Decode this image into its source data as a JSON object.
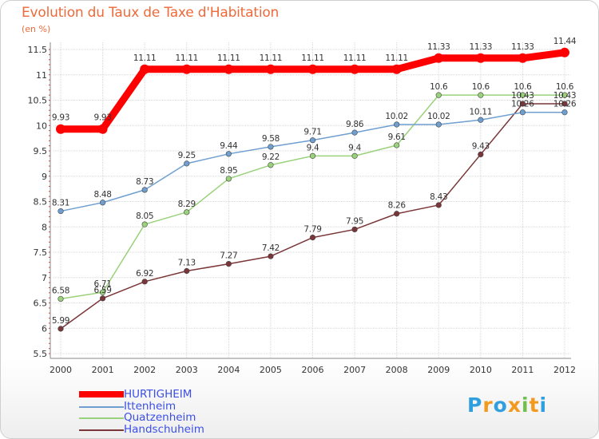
{
  "title": "Evolution du Taux de Taxe d'Habitation",
  "subtitle": "(en %)",
  "logo": {
    "text": "Proxiti",
    "letters": [
      {
        "ch": "P",
        "color": "#2f9fe0"
      },
      {
        "ch": "r",
        "color": "#f39a1e"
      },
      {
        "ch": "o",
        "color": "#2f9fe0"
      },
      {
        "ch": "x",
        "color": "#f39a1e"
      },
      {
        "ch": "i",
        "color": "#6fc04b"
      },
      {
        "ch": "t",
        "color": "#f39a1e"
      },
      {
        "ch": "i",
        "color": "#2f9fe0"
      }
    ]
  },
  "chart_data": {
    "type": "line",
    "title": "Evolution du Taux de Taxe d'Habitation",
    "ylabel": "(en %)",
    "xlabel": "",
    "x": [
      "2000",
      "2001",
      "2002",
      "2003",
      "2004",
      "2005",
      "2006",
      "2007",
      "2008",
      "2009",
      "2010",
      "2011",
      "2012"
    ],
    "ylim": [
      5.5,
      11.5
    ],
    "yticks": [
      "5.5",
      "6",
      "6.5",
      "7",
      "7.5",
      "8",
      "8.5",
      "9",
      "9.5",
      "10",
      "10.5",
      "11",
      "11.5"
    ],
    "grid": true,
    "legend_position": "bottom-left",
    "series": [
      {
        "name": "HURTIGHEIM",
        "color": "#ff0000",
        "values": [
          9.93,
          9.93,
          11.11,
          11.11,
          11.11,
          11.11,
          11.11,
          11.11,
          11.11,
          11.33,
          11.33,
          11.33,
          11.44
        ],
        "labels": [
          "9.93",
          "9.93",
          "11.11",
          "11.11",
          "11.11",
          "11.11",
          "11.11",
          "11.11",
          "11.11",
          "11.33",
          "11.33",
          "11.33",
          "11.44"
        ]
      },
      {
        "name": "Ittenheim",
        "color": "#6f9fd0",
        "values": [
          8.31,
          8.48,
          8.73,
          9.25,
          9.44,
          9.58,
          9.71,
          9.86,
          10.02,
          10.02,
          10.11,
          10.26,
          10.26
        ],
        "labels": [
          "8.31",
          "8.48",
          "8.73",
          "9.25",
          "9.44",
          "9.58",
          "9.71",
          "9.86",
          "10.02",
          "10.02",
          "10.11",
          "10.26",
          "10.26"
        ]
      },
      {
        "name": "Quatzenheim",
        "color": "#99d27a",
        "values": [
          6.58,
          6.71,
          8.05,
          8.29,
          8.95,
          9.22,
          9.4,
          9.4,
          9.61,
          10.6,
          10.6,
          10.6,
          10.6
        ],
        "labels": [
          "6.58",
          "6.71",
          "8.05",
          "8.29",
          "8.95",
          "9.22",
          "9.4",
          "9.4",
          "9.61",
          "10.6",
          "10.6",
          "10.6",
          "10.6"
        ]
      },
      {
        "name": "Handschuheim",
        "color": "#7a3638",
        "values": [
          5.99,
          6.59,
          6.92,
          7.13,
          7.27,
          7.42,
          7.79,
          7.95,
          8.26,
          8.43,
          9.43,
          10.43,
          10.43
        ],
        "labels": [
          "5.99",
          "6.59",
          "6.92",
          "7.13",
          "7.27",
          "7.42",
          "7.79",
          "7.95",
          "8.26",
          "8.43",
          "9.43",
          "10.43",
          "10.43"
        ]
      }
    ]
  }
}
